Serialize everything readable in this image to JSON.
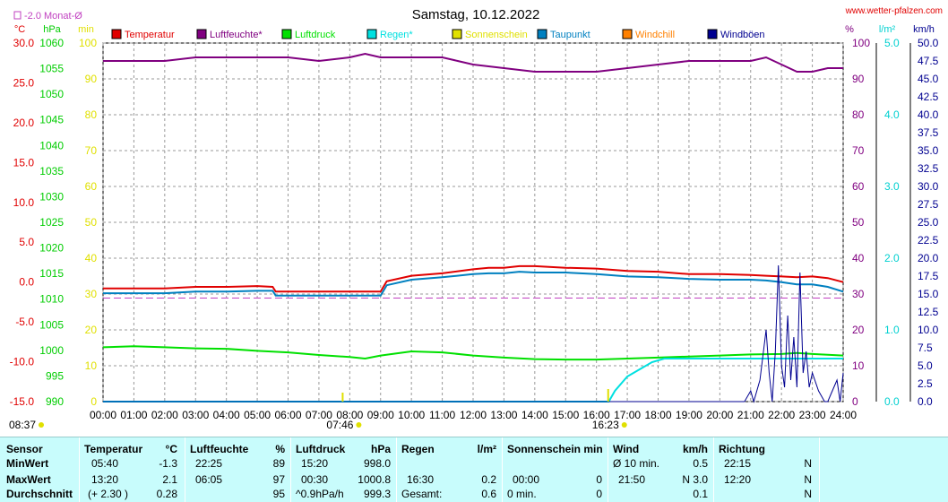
{
  "site": "www.wetter-pfalzen.com",
  "chart_data": {
    "type": "line",
    "title": "Samstag, 10.12.2022",
    "month_avg_legend": "-2.0 Monat-Ø",
    "month_avg_temp": -2.0,
    "unit_labels": {
      "temp": "°C",
      "pressure": "hPa",
      "sun": "min",
      "humidity": "%",
      "rain": "l/m²",
      "wind": "km/h"
    },
    "axes": {
      "temp": {
        "min": -15,
        "max": 30,
        "step": 5,
        "ticks": [
          "30.0",
          "25.0",
          "20.0",
          "15.0",
          "10.0",
          "5.0",
          "0.0",
          "-5.0",
          "-10.0",
          "-15.0"
        ]
      },
      "pressure": {
        "min": 990,
        "max": 1060,
        "step": 5,
        "ticks": [
          "1060",
          "1055",
          "1050",
          "1045",
          "1040",
          "1035",
          "1030",
          "1025",
          "1020",
          "1015",
          "1010",
          "1005",
          "1000",
          "995",
          "990"
        ]
      },
      "sun": {
        "min": 0,
        "max": 100,
        "step": 10,
        "ticks": [
          "100",
          "90",
          "80",
          "70",
          "60",
          "50",
          "40",
          "30",
          "20",
          "10",
          "0"
        ]
      },
      "humidity": {
        "min": 0,
        "max": 100,
        "step": 10,
        "ticks": [
          "100",
          "90",
          "80",
          "70",
          "60",
          "50",
          "40",
          "30",
          "20",
          "10",
          "0"
        ]
      },
      "rain": {
        "min": 0,
        "max": 5,
        "step": 1,
        "ticks": [
          "5.0",
          "4.0",
          "3.0",
          "2.0",
          "1.0",
          "0.0"
        ]
      },
      "wind": {
        "min": 0,
        "max": 50,
        "step": 2.5,
        "ticks": [
          "50.0",
          "47.5",
          "45.0",
          "42.5",
          "40.0",
          "37.5",
          "35.0",
          "32.5",
          "30.0",
          "27.5",
          "25.0",
          "22.5",
          "20.0",
          "17.5",
          "15.0",
          "12.5",
          "10.0",
          "7.5",
          "5.0",
          "2.5",
          "0.0"
        ]
      }
    },
    "x_labels": [
      "00:00",
      "01:00",
      "02:00",
      "03:00",
      "04:00",
      "05:00",
      "06:00",
      "07:00",
      "08:00",
      "09:00",
      "10:00",
      "11:00",
      "12:00",
      "13:00",
      "14:00",
      "15:00",
      "16:00",
      "17:00",
      "18:00",
      "19:00",
      "20:00",
      "21:00",
      "22:00",
      "23:00",
      "24:00"
    ],
    "sun_markers": [
      {
        "label": "08:37",
        "time": 8.62,
        "row": 2
      },
      {
        "label": "07:46",
        "time": 7.77,
        "row": 2
      },
      {
        "label": "16:23",
        "time": 16.38,
        "row": 1
      }
    ],
    "legend": [
      {
        "name": "Temperatur",
        "color": "#e00000"
      },
      {
        "name": "Luftfeuchte*",
        "color": "#800080"
      },
      {
        "name": "Luftdruck",
        "color": "#00e000"
      },
      {
        "name": "Regen*",
        "color": "#00e0e0"
      },
      {
        "name": "Sonnenschein",
        "color": "#e0e000"
      },
      {
        "name": "Taupunkt",
        "color": "#0080c0"
      },
      {
        "name": "Windchill",
        "color": "#ff8000"
      },
      {
        "name": "Windböen",
        "color": "#000090"
      }
    ],
    "series": [
      {
        "name": "Temperatur",
        "axis": "temp",
        "color": "#e00000",
        "x": [
          0,
          2,
          3,
          4,
          5,
          5.5,
          5.6,
          6,
          7,
          8,
          9,
          9.2,
          10,
          11,
          12,
          12.5,
          13,
          13.5,
          14,
          15,
          16,
          17,
          18,
          19,
          20,
          21,
          21.5,
          22,
          22.5,
          23,
          23.5,
          24
        ],
        "y": [
          -0.8,
          -0.8,
          -0.6,
          -0.6,
          -0.5,
          -0.6,
          -1.2,
          -1.2,
          -1.2,
          -1.2,
          -1.2,
          0.1,
          0.8,
          1.1,
          1.6,
          1.8,
          1.8,
          2.0,
          2.0,
          1.8,
          1.7,
          1.4,
          1.3,
          1.0,
          1.0,
          0.9,
          0.8,
          0.7,
          0.6,
          0.7,
          0.5,
          0.0
        ]
      },
      {
        "name": "Taupunkt",
        "axis": "temp",
        "color": "#0080c0",
        "x": [
          0,
          2,
          3,
          4,
          5,
          5.5,
          5.6,
          6,
          7,
          8,
          9,
          9.2,
          10,
          11,
          12,
          12.5,
          13,
          13.5,
          14,
          15,
          16,
          17,
          18,
          19,
          20,
          21,
          21.5,
          22,
          22.5,
          23,
          23.5,
          24
        ],
        "y": [
          -1.4,
          -1.4,
          -1.2,
          -1.2,
          -1.1,
          -1.1,
          -1.7,
          -1.7,
          -1.7,
          -1.7,
          -1.7,
          -0.4,
          0.3,
          0.6,
          1.0,
          1.1,
          1.1,
          1.3,
          1.2,
          1.2,
          1.0,
          0.7,
          0.6,
          0.4,
          0.3,
          0.3,
          0.2,
          0.0,
          -0.3,
          -0.3,
          -0.6,
          -1.2
        ]
      },
      {
        "name": "Luftfeuchte*",
        "axis": "humidity",
        "color": "#800080",
        "x": [
          0,
          1,
          2,
          3,
          4,
          5,
          6,
          7,
          8,
          8.5,
          9,
          10,
          11,
          11.5,
          12,
          13,
          14,
          15,
          16,
          17,
          18,
          19,
          20,
          21,
          21.5,
          22,
          22.5,
          23,
          23.5,
          24
        ],
        "y": [
          95,
          95,
          95,
          96,
          96,
          96,
          96,
          95,
          96,
          97,
          96,
          96,
          96,
          95,
          94,
          93,
          92,
          92,
          92,
          93,
          94,
          95,
          95,
          95,
          96,
          94,
          92,
          92,
          93,
          93
        ]
      },
      {
        "name": "Luftdruck",
        "axis": "pressure",
        "color": "#00e000",
        "x": [
          0,
          1,
          2,
          3,
          4,
          5,
          6,
          7,
          8,
          8.5,
          9,
          10,
          11,
          12,
          13,
          14,
          15,
          16,
          17,
          18,
          19,
          20,
          21,
          22,
          22.5,
          23,
          24
        ],
        "y": [
          1000.6,
          1000.8,
          1000.6,
          1000.4,
          1000.3,
          999.9,
          999.6,
          999.1,
          998.7,
          998.4,
          999.0,
          999.8,
          999.6,
          999.0,
          998.6,
          998.3,
          998.2,
          998.2,
          998.4,
          998.6,
          998.8,
          999.0,
          999.2,
          999.3,
          999.5,
          999.3,
          999.0
        ]
      },
      {
        "name": "Regen*",
        "axis": "rain",
        "color": "#00e0e0",
        "x": [
          0,
          16.4,
          16.6,
          17.0,
          17.4,
          17.8,
          18.2,
          18.6,
          19,
          20,
          21,
          22,
          23,
          24
        ],
        "y": [
          0,
          0,
          0.15,
          0.35,
          0.45,
          0.55,
          0.6,
          0.6,
          0.6,
          0.6,
          0.6,
          0.6,
          0.6,
          0.6
        ]
      },
      {
        "name": "Windböen",
        "axis": "wind",
        "color": "#000090",
        "x": [
          0,
          20.7,
          20.8,
          21.0,
          21.1,
          21.3,
          21.5,
          21.6,
          21.7,
          21.8,
          21.9,
          22.0,
          22.1,
          22.2,
          22.3,
          22.4,
          22.5,
          22.6,
          22.7,
          22.8,
          22.9,
          23.0,
          23.2,
          23.4,
          23.5,
          23.6,
          23.8,
          23.9,
          24
        ],
        "y": [
          0,
          0,
          0,
          1.5,
          0,
          3,
          10,
          4,
          0,
          7,
          19,
          5,
          2,
          12,
          3,
          9,
          2,
          18,
          4,
          7,
          2,
          4,
          1.5,
          0,
          0,
          1,
          3,
          0,
          4
        ]
      }
    ]
  },
  "stats": {
    "sensor": {
      "title": "Sensor",
      "rows": [
        "MinWert",
        "MaxWert",
        "Durchschnitt"
      ]
    },
    "temperatur": {
      "title": "Temperatur",
      "unit": "°C",
      "rows": [
        {
          "time": "05:40",
          "val": "-1.3"
        },
        {
          "time": "13:20",
          "val": "2.1"
        },
        {
          "time": "(+ 2.30 )",
          "val": "0.28"
        }
      ]
    },
    "luftfeuchte": {
      "title": "Luftfeuchte",
      "unit": "%",
      "rows": [
        {
          "time": "22:25",
          "val": "89"
        },
        {
          "time": "06:05",
          "val": "97"
        },
        {
          "time": "",
          "val": "95"
        }
      ]
    },
    "luftdruck": {
      "title": "Luftdruck",
      "unit": "hPa",
      "rows": [
        {
          "time": "15:20",
          "val": "998.0"
        },
        {
          "time": "00:30",
          "val": "1000.8"
        },
        {
          "time": "^0.9hPa/h",
          "val": "999.3"
        }
      ]
    },
    "regen": {
      "title": "Regen",
      "unit": "l/m²",
      "rows": [
        {
          "time": "",
          "val": ""
        },
        {
          "time": "16:30",
          "val": "0.2"
        },
        {
          "time": "Gesamt:",
          "val": "0.6"
        }
      ]
    },
    "sonne": {
      "title": "Sonnenschein min",
      "rows": [
        {
          "time": "",
          "val": ""
        },
        {
          "time": "00:00",
          "val": "0"
        },
        {
          "time": "0 min.",
          "val": "0"
        }
      ]
    },
    "wind": {
      "title": "Wind",
      "unit": "km/h",
      "rows": [
        {
          "time": "Ø 10 min.",
          "val": "0.5"
        },
        {
          "time": "21:50",
          "val": "N 3.0"
        },
        {
          "time": "",
          "val": "0.1"
        }
      ]
    },
    "richtung": {
      "title": "Richtung",
      "rows": [
        {
          "time": "22:15",
          "val": "N"
        },
        {
          "time": "12:20",
          "val": "N"
        },
        {
          "time": "",
          "val": "N"
        }
      ]
    }
  }
}
